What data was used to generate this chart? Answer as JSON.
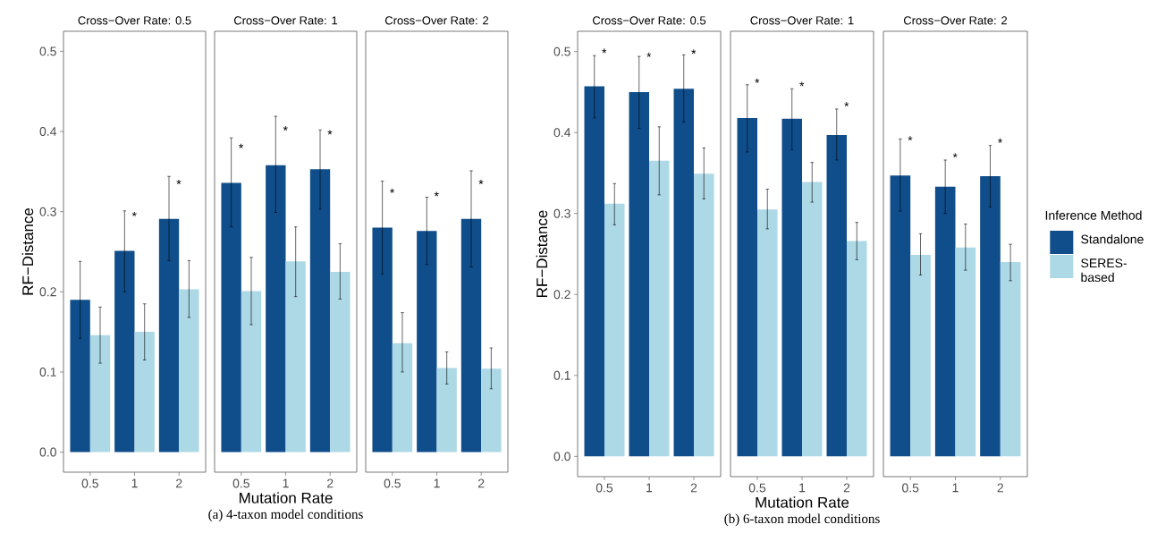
{
  "chart_data": [
    {
      "type": "bar",
      "title": "Cross−Over Rate: 0.5",
      "ylabel": "RF−Distance",
      "categories": [
        "0.5",
        "1",
        "2"
      ],
      "ylim": [
        -0.025,
        0.525
      ],
      "yticks": [
        {
          "value": 0,
          "label": "0.0"
        },
        0.1,
        0.2,
        0.3,
        0.4,
        0.5
      ],
      "series": [
        {
          "color": "#104e8b",
          "values": [
            0.19,
            0.251,
            0.291
          ],
          "errors": [
            [
              0.142,
              0.238
            ],
            [
              0.2,
              0.301
            ],
            [
              0.239,
              0.344
            ]
          ],
          "value_labels": [
            null,
            "*",
            "*"
          ]
        },
        {
          "color": "#add8e6",
          "values": [
            0.146,
            0.15,
            0.203
          ],
          "errors": [
            [
              0.111,
              0.181
            ],
            [
              0.115,
              0.185
            ],
            [
              0.168,
              0.239
            ]
          ]
        }
      ]
    },
    {
      "type": "bar",
      "title": "Cross−Over Rate: 1",
      "xlabel": "Mutation Rate",
      "categories": [
        "0.5",
        "1",
        "2"
      ],
      "ylim": [
        -0.025,
        0.525
      ],
      "tick_labels": "x",
      "series": [
        {
          "color": "#104e8b",
          "values": [
            0.336,
            0.358,
            0.353
          ],
          "errors": [
            [
              0.281,
              0.392
            ],
            [
              0.299,
              0.419
            ],
            [
              0.303,
              0.402
            ]
          ],
          "value_labels": [
            "*",
            "*",
            "*"
          ]
        },
        {
          "color": "#add8e6",
          "values": [
            0.201,
            0.238,
            0.225
          ],
          "errors": [
            [
              0.159,
              0.243
            ],
            [
              0.194,
              0.281
            ],
            [
              0.191,
              0.26
            ]
          ]
        }
      ],
      "annotations": [
        "(a) 4-taxon model conditions"
      ]
    },
    {
      "type": "bar",
      "title": "Cross−Over Rate: 2",
      "categories": [
        "0.5",
        "1",
        "2"
      ],
      "ylim": [
        -0.025,
        0.525
      ],
      "tick_labels": "x",
      "series": [
        {
          "color": "#104e8b",
          "values": [
            0.28,
            0.276,
            0.291
          ],
          "errors": [
            [
              0.222,
              0.338
            ],
            [
              0.234,
              0.318
            ],
            [
              0.231,
              0.351
            ]
          ],
          "value_labels": [
            "*",
            "*",
            "*"
          ]
        },
        {
          "color": "#add8e6",
          "values": [
            0.136,
            0.105,
            0.104
          ],
          "errors": [
            [
              0.1,
              0.174
            ],
            [
              0.085,
              0.125
            ],
            [
              0.079,
              0.13
            ]
          ]
        }
      ]
    },
    {
      "type": "bar",
      "title": "Cross−Over Rate: 0.5",
      "ylabel": "RF−Distance",
      "categories": [
        "0.5",
        "1",
        "2"
      ],
      "ylim": [
        -0.025,
        0.525
      ],
      "yticks": [
        {
          "value": 0,
          "label": "0.0"
        },
        0.1,
        0.2,
        0.3,
        0.4,
        0.5
      ],
      "series": [
        {
          "color": "#104e8b",
          "values": [
            0.457,
            0.45,
            0.454
          ],
          "errors": [
            [
              0.418,
              0.495
            ],
            [
              0.405,
              0.494
            ],
            [
              0.413,
              0.496
            ]
          ],
          "value_labels": [
            "*",
            "*",
            "*"
          ]
        },
        {
          "color": "#add8e6",
          "values": [
            0.312,
            0.365,
            0.349
          ],
          "errors": [
            [
              0.286,
              0.337
            ],
            [
              0.323,
              0.407
            ],
            [
              0.318,
              0.381
            ]
          ]
        }
      ]
    },
    {
      "type": "bar",
      "title": "Cross−Over Rate: 1",
      "xlabel": "Mutation Rate",
      "categories": [
        "0.5",
        "1",
        "2"
      ],
      "ylim": [
        -0.025,
        0.525
      ],
      "tick_labels": "x",
      "series": [
        {
          "color": "#104e8b",
          "values": [
            0.418,
            0.417,
            0.397
          ],
          "errors": [
            [
              0.376,
              0.459
            ],
            [
              0.379,
              0.454
            ],
            [
              0.366,
              0.429
            ]
          ],
          "value_labels": [
            "*",
            "*",
            "*"
          ]
        },
        {
          "color": "#add8e6",
          "values": [
            0.305,
            0.339,
            0.266
          ],
          "errors": [
            [
              0.281,
              0.33
            ],
            [
              0.314,
              0.363
            ],
            [
              0.243,
              0.289
            ]
          ]
        }
      ],
      "annotations": [
        "(b) 6-taxon model conditions"
      ]
    },
    {
      "type": "bar",
      "title": "Cross−Over Rate: 2",
      "categories": [
        "0.5",
        "1",
        "2"
      ],
      "ylim": [
        -0.025,
        0.525
      ],
      "tick_labels": "x",
      "legend": "right",
      "legend_title": "Inference Method",
      "series": [
        {
          "name": "Standalone",
          "color": "#104e8b",
          "values": [
            0.347,
            0.333,
            0.346
          ],
          "errors": [
            [
              0.303,
              0.392
            ],
            [
              0.3,
              0.366
            ],
            [
              0.308,
              0.384
            ]
          ],
          "value_labels": [
            "*",
            "*",
            "*"
          ]
        },
        {
          "name": "SERES-based",
          "color": "#add8e6",
          "values": [
            0.249,
            0.258,
            0.24
          ],
          "errors": [
            [
              0.224,
              0.275
            ],
            [
              0.23,
              0.287
            ],
            [
              0.217,
              0.262
            ]
          ]
        }
      ]
    }
  ]
}
